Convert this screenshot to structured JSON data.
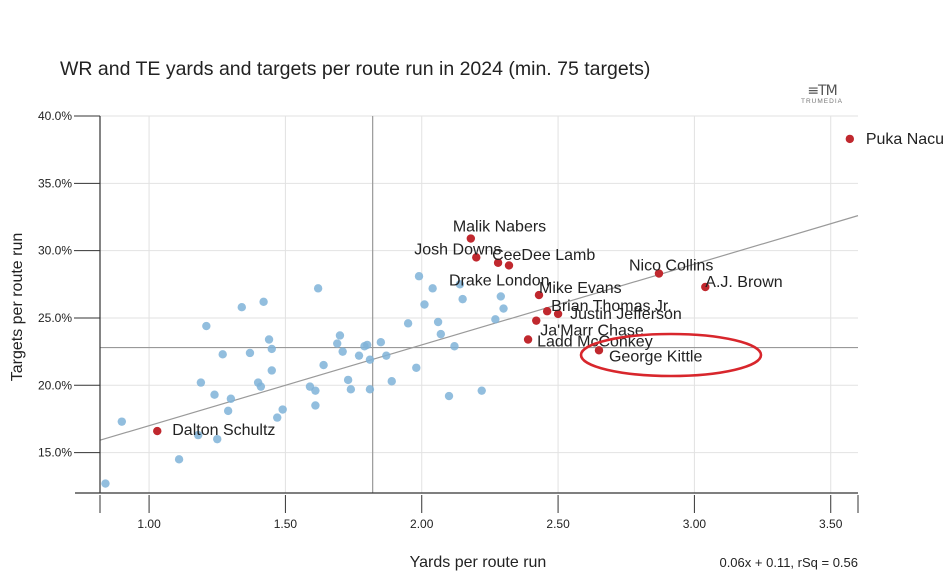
{
  "chart_data": {
    "type": "scatter",
    "title": "WR and TE yards and targets per route run in 2024 (min. 75 targets)",
    "xlabel": "Yards per route run",
    "ylabel": "Targets per route run",
    "xlim": [
      0.82,
      3.6
    ],
    "ylim": [
      12.0,
      40.0
    ],
    "x_ticks": [
      1.0,
      1.5,
      2.0,
      2.5,
      3.0,
      3.5
    ],
    "x_tick_labels": [
      "1.00",
      "1.50",
      "2.00",
      "2.50",
      "3.00",
      "3.50"
    ],
    "y_ticks": [
      15,
      20,
      25,
      30,
      35,
      40
    ],
    "y_tick_labels": [
      "15.0%",
      "20.0%",
      "25.0%",
      "30.0%",
      "35.0%",
      "40.0%"
    ],
    "reference_lines": {
      "x_avg": 1.82,
      "y_avg": 22.8
    },
    "trendline": {
      "slope": 0.06,
      "intercept": 0.11,
      "x_range": [
        0.82,
        3.6
      ],
      "equation_label": "0.06x + 0.11, rSq = 0.56"
    },
    "colors": {
      "other": "#7fb3d8",
      "highlight": "#c0282e",
      "circle": "#d8262c",
      "grid": "#e2e2e2",
      "ref": "#999999",
      "trend": "#9a9a9a"
    },
    "highlighted": [
      {
        "name": "Puka Nacua",
        "label": "Puka Nacu",
        "x": 3.57,
        "y": 38.3
      },
      {
        "name": "Malik Nabers",
        "label": "Malik Nabers",
        "x": 2.18,
        "y": 30.9
      },
      {
        "name": "Josh Downs",
        "label": "Josh Downs",
        "x": 2.2,
        "y": 29.5
      },
      {
        "name": "CeeDee Lamb",
        "label": "CeeDee Lamb",
        "x": 2.28,
        "y": 29.1
      },
      {
        "name": "Drake London",
        "label": "Drake London",
        "x": 2.32,
        "y": 28.9
      },
      {
        "name": "Nico Collins",
        "label": "Nico Collins",
        "x": 2.87,
        "y": 28.3
      },
      {
        "name": "A.J. Brown",
        "label": "A.J. Brown",
        "x": 3.04,
        "y": 27.3
      },
      {
        "name": "Mike Evans",
        "label": "Mike Evans",
        "x": 2.43,
        "y": 26.7
      },
      {
        "name": "Brian Thomas Jr.",
        "label": "Brian Thomas Jr.",
        "x": 2.46,
        "y": 25.5
      },
      {
        "name": "Justin Jefferson",
        "label": "Justin Jefferson",
        "x": 2.5,
        "y": 25.3
      },
      {
        "name": "Ja'Marr Chase",
        "label": "Ja'Marr Chase",
        "x": 2.42,
        "y": 24.8
      },
      {
        "name": "Ladd McConkey",
        "label": "Ladd McConkey",
        "x": 2.39,
        "y": 23.4
      },
      {
        "name": "George Kittle",
        "label": "George Kittle",
        "x": 2.65,
        "y": 22.6
      },
      {
        "name": "Dalton Schultz",
        "label": "Dalton Schultz",
        "x": 1.03,
        "y": 16.6
      }
    ],
    "others": [
      [
        0.84,
        12.7
      ],
      [
        0.9,
        17.3
      ],
      [
        1.11,
        14.5
      ],
      [
        1.18,
        16.3
      ],
      [
        1.19,
        20.2
      ],
      [
        1.21,
        24.4
      ],
      [
        1.24,
        19.3
      ],
      [
        1.25,
        16.0
      ],
      [
        1.27,
        22.3
      ],
      [
        1.29,
        18.1
      ],
      [
        1.3,
        19.0
      ],
      [
        1.34,
        25.8
      ],
      [
        1.37,
        22.4
      ],
      [
        1.4,
        20.2
      ],
      [
        1.41,
        19.9
      ],
      [
        1.42,
        26.2
      ],
      [
        1.44,
        23.4
      ],
      [
        1.45,
        21.1
      ],
      [
        1.45,
        22.7
      ],
      [
        1.47,
        17.6
      ],
      [
        1.49,
        18.2
      ],
      [
        1.59,
        19.9
      ],
      [
        1.61,
        18.5
      ],
      [
        1.61,
        19.6
      ],
      [
        1.62,
        27.2
      ],
      [
        1.64,
        21.5
      ],
      [
        1.69,
        23.1
      ],
      [
        1.7,
        23.7
      ],
      [
        1.71,
        22.5
      ],
      [
        1.73,
        20.4
      ],
      [
        1.74,
        19.7
      ],
      [
        1.77,
        22.2
      ],
      [
        1.79,
        22.9
      ],
      [
        1.8,
        23.0
      ],
      [
        1.81,
        21.9
      ],
      [
        1.81,
        19.7
      ],
      [
        1.85,
        23.2
      ],
      [
        1.87,
        22.2
      ],
      [
        1.89,
        20.3
      ],
      [
        1.95,
        24.6
      ],
      [
        1.98,
        21.3
      ],
      [
        1.99,
        28.1
      ],
      [
        2.01,
        26.0
      ],
      [
        2.04,
        27.2
      ],
      [
        2.06,
        24.7
      ],
      [
        2.07,
        23.8
      ],
      [
        2.1,
        19.2
      ],
      [
        2.12,
        22.9
      ],
      [
        2.14,
        27.5
      ],
      [
        2.15,
        26.4
      ],
      [
        2.22,
        19.6
      ],
      [
        2.27,
        24.9
      ],
      [
        2.29,
        26.6
      ],
      [
        2.3,
        25.7
      ]
    ]
  }
}
